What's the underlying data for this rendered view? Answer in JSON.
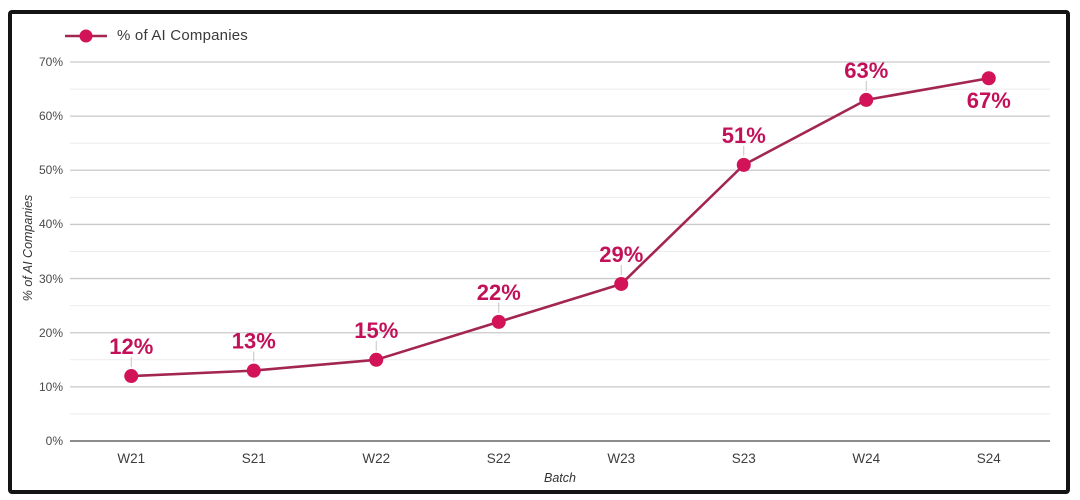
{
  "legend": {
    "label": "% of AI Companies"
  },
  "chart_data": {
    "type": "line",
    "title": "",
    "categories": [
      "W21",
      "S21",
      "W22",
      "S22",
      "W23",
      "S23",
      "W24",
      "S24"
    ],
    "values": [
      12,
      13,
      15,
      22,
      29,
      51,
      63,
      67
    ],
    "point_labels": [
      "12%",
      "13%",
      "15%",
      "22%",
      "29%",
      "51%",
      "63%",
      "67%"
    ],
    "label_positions": [
      "above",
      "above",
      "above",
      "above",
      "above",
      "above",
      "above",
      "below"
    ],
    "xlabel": "Batch",
    "ylabel": "% of AI Companies",
    "ylim": [
      0,
      70
    ],
    "ytick_step": 10,
    "ytick_labels": [
      "0%",
      "10%",
      "20%",
      "30%",
      "40%",
      "50%",
      "60%",
      "70%"
    ],
    "grid": "horizontal gridlines, minor every 5%, major every 10%",
    "legend_position": "top-left",
    "colors": {
      "line": "#a32551",
      "marker": "#d21358",
      "data_label": "#c31159",
      "grid_major": "#c9c9c9",
      "grid_minor": "#ececec",
      "baseline": "#8c8c8c",
      "frame": "#141414"
    }
  }
}
